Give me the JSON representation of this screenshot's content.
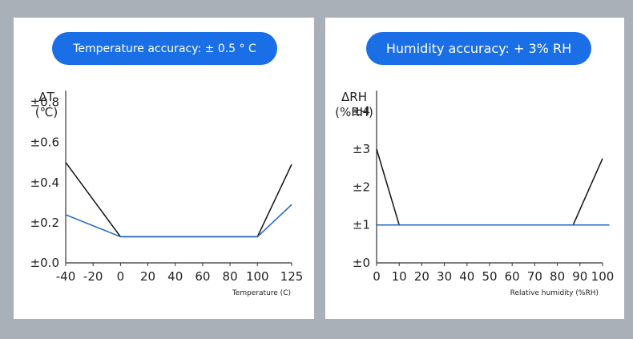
{
  "chart_data": [
    {
      "type": "line",
      "title": "Temperature accuracy: ± 0.5 ° C",
      "ylabel_lines": [
        "ΔT",
        "(℃)"
      ],
      "xlabel": "Temperature (C)",
      "x_ticks": [
        -40,
        -20,
        0,
        20,
        40,
        60,
        80,
        100,
        125
      ],
      "y_ticks": [
        0.0,
        0.2,
        0.4,
        0.6,
        0.8
      ],
      "y_tick_labels": [
        "±0.0",
        "±0.2",
        "±0.4",
        "±0.6",
        "±0.8"
      ],
      "xlim": [
        -40,
        125
      ],
      "ylim": [
        0,
        0.85
      ],
      "grid": false,
      "series": [
        {
          "color": "#111111",
          "x": [
            -40,
            0,
            100,
            125
          ],
          "y": [
            0.5,
            0.13,
            0.13,
            0.49
          ]
        },
        {
          "color": "#1f63c8",
          "x": [
            -40,
            0,
            100,
            125
          ],
          "y": [
            0.24,
            0.13,
            0.13,
            0.29
          ]
        }
      ]
    },
    {
      "type": "line",
      "title": "Humidity accuracy: + 3% RH",
      "ylabel_lines": [
        "ΔRH",
        "(%RH)"
      ],
      "xlabel": "Relative humidity (%RH)",
      "x_ticks": [
        0,
        10,
        20,
        30,
        40,
        50,
        60,
        70,
        80,
        90,
        100
      ],
      "y_ticks": [
        0,
        1,
        2,
        3,
        4
      ],
      "y_tick_labels": [
        "±0",
        "±1",
        "±2",
        "±3",
        "±4"
      ],
      "xlim": [
        0,
        100
      ],
      "ylim": [
        0,
        4.5
      ],
      "grid": false,
      "series": [
        {
          "color": "#111111",
          "x": [
            0,
            10,
            87,
            100
          ],
          "y": [
            3.0,
            1.0,
            1.0,
            2.75
          ]
        },
        {
          "color": "#1f63c8",
          "x": [
            0,
            103
          ],
          "y": [
            1.0,
            1.0
          ]
        }
      ]
    }
  ]
}
